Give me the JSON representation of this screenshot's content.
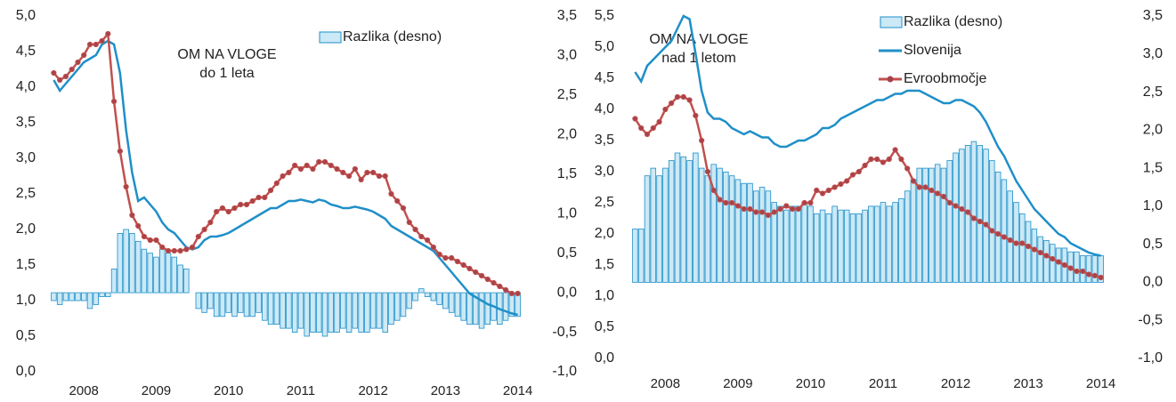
{
  "chart_data": [
    {
      "type": "bar-line",
      "title": "OM NA VLOGE",
      "subtitle": "do 1 leta",
      "categories": [
        null,
        null,
        null,
        null,
        null,
        "2008",
        null,
        null,
        null,
        null,
        null,
        null,
        null,
        null,
        null,
        null,
        null,
        "2009",
        null,
        null,
        null,
        null,
        null,
        null,
        null,
        null,
        null,
        null,
        null,
        "2010",
        null,
        null,
        null,
        null,
        null,
        null,
        null,
        null,
        null,
        null,
        null,
        "2011",
        null,
        null,
        null,
        null,
        null,
        null,
        null,
        null,
        null,
        null,
        null,
        "2012",
        null,
        null,
        null,
        null,
        null,
        null,
        null,
        null,
        null,
        null,
        null,
        "2013",
        null,
        null,
        null,
        null,
        null,
        null,
        null,
        null,
        null,
        null,
        null,
        "2014"
      ],
      "ylim": [
        0,
        5
      ],
      "yticks": [
        {
          "value": 0,
          "label": "0,0"
        },
        {
          "value": 0.5,
          "label": "0,5"
        },
        {
          "value": 1,
          "label": "1,0"
        },
        {
          "value": 1.5,
          "label": "1,5"
        },
        {
          "value": 2,
          "label": "2,0"
        },
        {
          "value": 2.5,
          "label": "2,5"
        },
        {
          "value": 3,
          "label": "3,0"
        },
        {
          "value": 3.5,
          "label": "3,5"
        },
        {
          "value": 4,
          "label": "4,0"
        },
        {
          "value": 4.5,
          "label": "4,5"
        },
        {
          "value": 5,
          "label": "5,0"
        }
      ],
      "y2lim": [
        -1,
        3.5
      ],
      "y2ticks": [
        {
          "value": -1,
          "label": "-1,0"
        },
        {
          "value": -0.5,
          "label": "-0,5"
        },
        {
          "value": 0,
          "label": "0,0"
        },
        {
          "value": 0.5,
          "label": "0,5"
        },
        {
          "value": 1,
          "label": "1,0"
        },
        {
          "value": 1.5,
          "label": "1,5"
        },
        {
          "value": 2,
          "label": "2,0"
        },
        {
          "value": 2.5,
          "label": "2,5"
        },
        {
          "value": 3,
          "label": "3,0"
        },
        {
          "value": 3.5,
          "label": "3,5"
        }
      ],
      "series": [
        {
          "name": "Razlika (desno)",
          "kind": "bar",
          "axis": "y2",
          "color": "#1f8fc8",
          "values": [
            -0.1,
            -0.15,
            -0.1,
            -0.1,
            -0.1,
            -0.1,
            -0.2,
            -0.15,
            -0.05,
            -0.05,
            0.3,
            0.75,
            0.8,
            0.75,
            0.65,
            0.55,
            0.5,
            0.45,
            0.55,
            0.5,
            0.45,
            0.35,
            0.3,
            0.0,
            -0.2,
            -0.25,
            -0.2,
            -0.3,
            -0.3,
            -0.25,
            -0.3,
            -0.25,
            -0.3,
            -0.3,
            -0.25,
            -0.35,
            -0.4,
            -0.4,
            -0.45,
            -0.45,
            -0.5,
            -0.45,
            -0.55,
            -0.5,
            -0.5,
            -0.55,
            -0.5,
            -0.5,
            -0.45,
            -0.5,
            -0.45,
            -0.5,
            -0.5,
            -0.45,
            -0.45,
            -0.5,
            -0.4,
            -0.35,
            -0.3,
            -0.2,
            -0.1,
            0.05,
            -0.05,
            -0.1,
            -0.15,
            -0.2,
            -0.25,
            -0.3,
            -0.35,
            -0.4,
            -0.4,
            -0.45,
            -0.4,
            -0.35,
            -0.4,
            -0.35,
            -0.3,
            -0.3
          ]
        },
        {
          "kind": "line",
          "color": "#1f8fc8",
          "values": [
            4.1,
            3.95,
            4.05,
            4.15,
            4.25,
            4.35,
            4.4,
            4.45,
            4.6,
            4.65,
            4.6,
            4.2,
            3.4,
            2.8,
            2.4,
            2.45,
            2.35,
            2.25,
            2.1,
            2.0,
            1.95,
            1.85,
            1.75,
            1.72,
            1.75,
            1.85,
            1.9,
            1.9,
            1.92,
            1.95,
            2.0,
            2.05,
            2.1,
            2.15,
            2.2,
            2.25,
            2.3,
            2.3,
            2.35,
            2.4,
            2.4,
            2.42,
            2.4,
            2.38,
            2.42,
            2.4,
            2.35,
            2.33,
            2.3,
            2.3,
            2.32,
            2.3,
            2.28,
            2.25,
            2.2,
            2.15,
            2.05,
            2.0,
            1.95,
            1.9,
            1.85,
            1.8,
            1.75,
            1.7,
            1.6,
            1.5,
            1.4,
            1.3,
            1.2,
            1.1,
            1.05,
            1.0,
            0.95,
            0.92,
            0.88,
            0.85,
            0.82,
            0.8
          ]
        },
        {
          "kind": "line",
          "marker": true,
          "color": "#c0504d",
          "values": [
            4.2,
            4.1,
            4.15,
            4.25,
            4.35,
            4.45,
            4.6,
            4.6,
            4.65,
            4.75,
            3.8,
            3.1,
            2.6,
            2.2,
            2.05,
            1.9,
            1.85,
            1.85,
            1.75,
            1.7,
            1.7,
            1.7,
            1.72,
            1.75,
            1.9,
            2.0,
            2.1,
            2.25,
            2.3,
            2.25,
            2.3,
            2.35,
            2.35,
            2.4,
            2.45,
            2.45,
            2.55,
            2.65,
            2.75,
            2.8,
            2.9,
            2.85,
            2.9,
            2.85,
            2.95,
            2.95,
            2.9,
            2.85,
            2.8,
            2.75,
            2.85,
            2.7,
            2.8,
            2.8,
            2.75,
            2.75,
            2.5,
            2.4,
            2.3,
            2.1,
            2.0,
            1.9,
            1.85,
            1.75,
            1.65,
            1.6,
            1.6,
            1.55,
            1.5,
            1.45,
            1.4,
            1.35,
            1.3,
            1.25,
            1.2,
            1.15,
            1.1,
            1.1
          ]
        }
      ]
    },
    {
      "type": "bar-line",
      "title": "OM NA VLOGE",
      "subtitle": "nad 1 letom",
      "categories": [
        null,
        null,
        null,
        null,
        null,
        "2008",
        null,
        null,
        null,
        null,
        null,
        null,
        null,
        null,
        null,
        null,
        null,
        "2009",
        null,
        null,
        null,
        null,
        null,
        null,
        null,
        null,
        null,
        null,
        null,
        "2010",
        null,
        null,
        null,
        null,
        null,
        null,
        null,
        null,
        null,
        null,
        null,
        "2011",
        null,
        null,
        null,
        null,
        null,
        null,
        null,
        null,
        null,
        null,
        null,
        "2012",
        null,
        null,
        null,
        null,
        null,
        null,
        null,
        null,
        null,
        null,
        null,
        "2013",
        null,
        null,
        null,
        null,
        null,
        null,
        null,
        null,
        null,
        null,
        null,
        "2014"
      ],
      "ylim": [
        0,
        5.5
      ],
      "yticks": [
        {
          "value": 0,
          "label": "0,0"
        },
        {
          "value": 0.5,
          "label": "0,5"
        },
        {
          "value": 1,
          "label": "1,0"
        },
        {
          "value": 1.5,
          "label": "1,5"
        },
        {
          "value": 2,
          "label": "2,0"
        },
        {
          "value": 2.5,
          "label": "2,5"
        },
        {
          "value": 3,
          "label": "3,0"
        },
        {
          "value": 3.5,
          "label": "3,5"
        },
        {
          "value": 4,
          "label": "4,0"
        },
        {
          "value": 4.5,
          "label": "4,5"
        },
        {
          "value": 5,
          "label": "5,0"
        },
        {
          "value": 5.5,
          "label": "5,5"
        }
      ],
      "y2lim": [
        -1,
        3.5
      ],
      "y2ticks": [
        {
          "value": -1,
          "label": "-1,0"
        },
        {
          "value": -0.5,
          "label": "-0,5"
        },
        {
          "value": 0,
          "label": "0,0"
        },
        {
          "value": 0.5,
          "label": "0,5"
        },
        {
          "value": 1,
          "label": "1,0"
        },
        {
          "value": 1.5,
          "label": "1,5"
        },
        {
          "value": 2,
          "label": "2,0"
        },
        {
          "value": 2.5,
          "label": "2,5"
        },
        {
          "value": 3,
          "label": "3,0"
        },
        {
          "value": 3.5,
          "label": "3,5"
        }
      ],
      "series": [
        {
          "name": "Razlika (desno)",
          "kind": "bar",
          "axis": "y2",
          "color": "#1f8fc8",
          "values": [
            0.7,
            0.7,
            1.4,
            1.5,
            1.4,
            1.5,
            1.6,
            1.7,
            1.65,
            1.6,
            1.7,
            1.5,
            1.4,
            1.55,
            1.5,
            1.45,
            1.4,
            1.35,
            1.3,
            1.3,
            1.2,
            1.25,
            1.2,
            1.05,
            1.0,
            0.95,
            1.0,
            1.0,
            1.05,
            1.0,
            0.9,
            0.95,
            0.9,
            1.0,
            0.95,
            0.95,
            0.9,
            0.9,
            0.95,
            1.0,
            1.0,
            1.05,
            1.0,
            1.05,
            1.1,
            1.2,
            1.35,
            1.5,
            1.5,
            1.5,
            1.55,
            1.5,
            1.6,
            1.7,
            1.75,
            1.8,
            1.85,
            1.8,
            1.75,
            1.6,
            1.45,
            1.35,
            1.2,
            1.05,
            0.9,
            0.8,
            0.7,
            0.6,
            0.55,
            0.5,
            0.45,
            0.45,
            0.4,
            0.4,
            0.35,
            0.35,
            0.35,
            0.35
          ]
        },
        {
          "name": "Slovenija",
          "kind": "line",
          "color": "#1f8fc8",
          "values": [
            4.6,
            4.45,
            4.7,
            4.8,
            4.9,
            5.0,
            5.1,
            5.3,
            5.5,
            5.45,
            4.9,
            4.3,
            3.95,
            3.85,
            3.85,
            3.8,
            3.7,
            3.65,
            3.6,
            3.65,
            3.6,
            3.55,
            3.55,
            3.45,
            3.4,
            3.4,
            3.45,
            3.5,
            3.5,
            3.55,
            3.6,
            3.7,
            3.7,
            3.75,
            3.85,
            3.9,
            3.95,
            4.0,
            4.05,
            4.1,
            4.15,
            4.15,
            4.2,
            4.25,
            4.25,
            4.3,
            4.3,
            4.3,
            4.25,
            4.2,
            4.15,
            4.1,
            4.1,
            4.15,
            4.15,
            4.1,
            4.05,
            3.95,
            3.8,
            3.6,
            3.4,
            3.25,
            3.05,
            2.85,
            2.7,
            2.55,
            2.4,
            2.3,
            2.2,
            2.1,
            2.0,
            1.95,
            1.85,
            1.8,
            1.75,
            1.7,
            1.67,
            1.65
          ]
        },
        {
          "name": "Evroobmočje",
          "kind": "line",
          "marker": true,
          "color": "#c0504d",
          "values": [
            3.85,
            3.7,
            3.6,
            3.7,
            3.8,
            4.0,
            4.1,
            4.2,
            4.2,
            4.15,
            3.9,
            3.5,
            3.0,
            2.7,
            2.55,
            2.5,
            2.5,
            2.45,
            2.4,
            2.4,
            2.35,
            2.35,
            2.3,
            2.35,
            2.4,
            2.45,
            2.4,
            2.4,
            2.5,
            2.5,
            2.7,
            2.65,
            2.7,
            2.75,
            2.8,
            2.85,
            2.95,
            3.0,
            3.1,
            3.2,
            3.2,
            3.15,
            3.2,
            3.35,
            3.2,
            3.05,
            2.85,
            2.75,
            2.75,
            2.7,
            2.65,
            2.6,
            2.5,
            2.45,
            2.4,
            2.35,
            2.25,
            2.2,
            2.15,
            2.05,
            2.0,
            1.95,
            1.9,
            1.85,
            1.85,
            1.8,
            1.75,
            1.7,
            1.65,
            1.6,
            1.55,
            1.5,
            1.45,
            1.4,
            1.4,
            1.35,
            1.33,
            1.3
          ]
        }
      ]
    }
  ]
}
